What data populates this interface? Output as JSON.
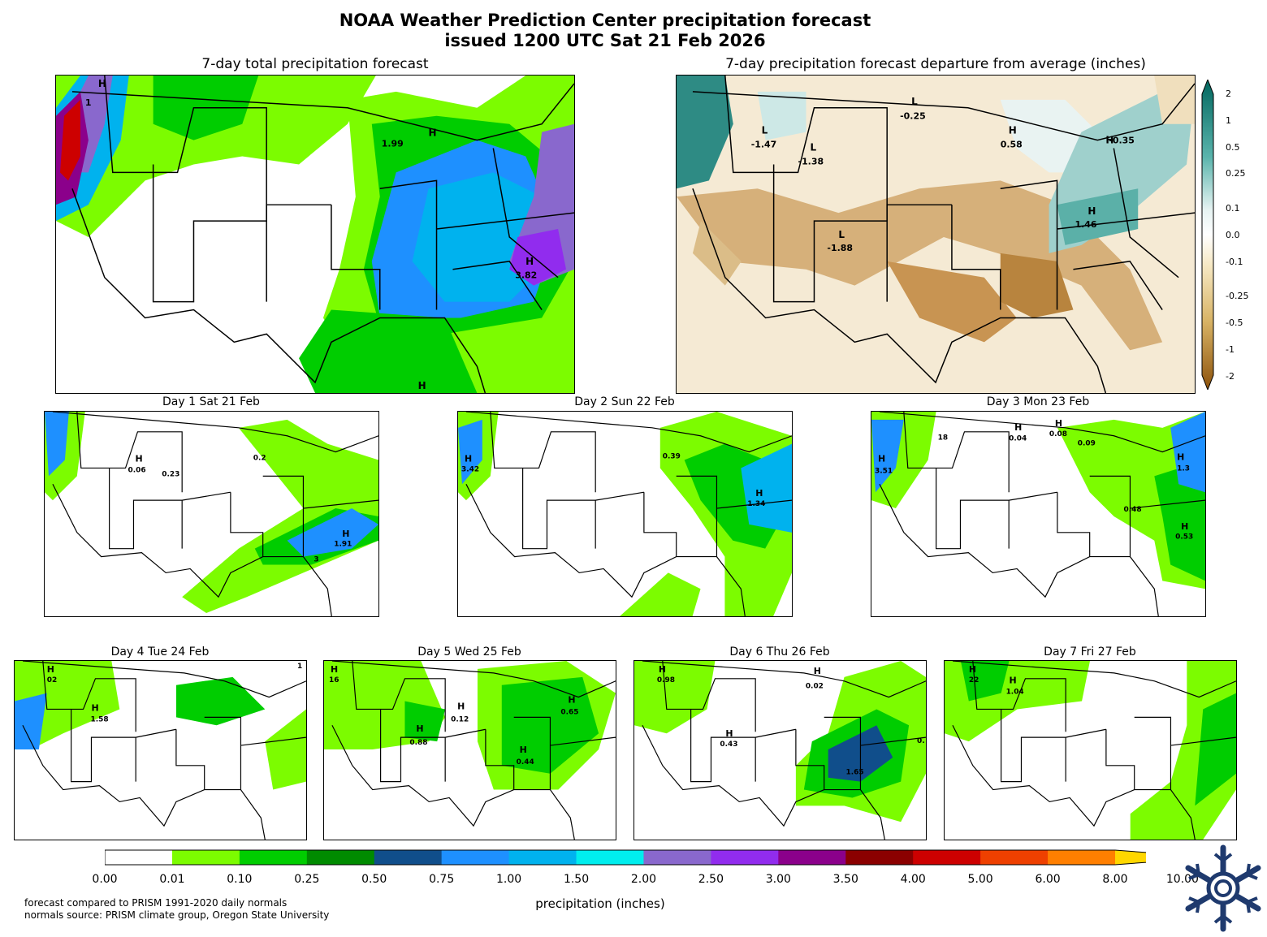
{
  "title_line1": "NOAA Weather Prediction Center precipitation forecast",
  "title_line2": "issued 1200 UTC Sat 21 Feb 2026",
  "total_panel_title": "7-day total precipitation forecast",
  "departure_panel_title": "7-day precipitation forecast departure from average (inches)",
  "day_panels": [
    {
      "title": "Day 1  Sat 21 Feb"
    },
    {
      "title": "Day 2  Sun 22 Feb"
    },
    {
      "title": "Day 3  Mon 23 Feb"
    },
    {
      "title": "Day 4  Tue 24 Feb"
    },
    {
      "title": "Day 5  Wed 25 Feb"
    },
    {
      "title": "Day 6  Thu 26 Feb"
    },
    {
      "title": "Day 7  Fri 27 Feb"
    }
  ],
  "total_markers": [
    {
      "kind": "H",
      "value": "1"
    },
    {
      "kind": "H",
      "value": "1.99"
    },
    {
      "kind": "H",
      "value": "3.82"
    },
    {
      "kind": "H",
      "value": ""
    }
  ],
  "departure_markers": [
    {
      "kind": "L",
      "value": "-1.47"
    },
    {
      "kind": "L",
      "value": "-1.38"
    },
    {
      "kind": "L",
      "value": "-0.25"
    },
    {
      "kind": "H",
      "value": "0.58"
    },
    {
      "kind": "H",
      "value": "-0.35"
    },
    {
      "kind": "H",
      "value": "1.46"
    },
    {
      "kind": "L",
      "value": "-1.88"
    }
  ],
  "day_markers": {
    "day1": [
      "0.06",
      "0.23",
      "0.2",
      "1.91",
      "3"
    ],
    "day2": [
      "3.42",
      "0.39",
      "1.34"
    ],
    "day3": [
      "3.51",
      "18",
      "0.04",
      "0.08",
      "0.09",
      "0.48",
      "1.3",
      "0.53"
    ],
    "day4": [
      "02",
      "1.58",
      "1"
    ],
    "day5": [
      "16",
      "0.88",
      "0.12",
      "0.65",
      "0.44"
    ],
    "day6": [
      "0.98",
      "0.02",
      "0.43",
      "1.65",
      "0."
    ],
    "day7": [
      "22",
      "1.04"
    ]
  },
  "departure_colorbar_ticks": [
    "2",
    "1",
    "0.5",
    "0.25",
    "0.1",
    "0.0",
    "-0.1",
    "-0.25",
    "-0.5",
    "-1",
    "-2"
  ],
  "precip_colorbar": {
    "ticks": [
      "0.00",
      "0.01",
      "0.10",
      "0.25",
      "0.50",
      "0.75",
      "1.00",
      "1.50",
      "2.00",
      "2.50",
      "3.00",
      "3.50",
      "4.00",
      "5.00",
      "6.00",
      "8.00",
      "10.00"
    ],
    "colors": [
      "#ffffff",
      "#7cfc00",
      "#00cd00",
      "#008b00",
      "#104e8b",
      "#1e90ff",
      "#00b2ee",
      "#00eeee",
      "#8968cd",
      "#912cee",
      "#8b008b",
      "#8b0000",
      "#cd0000",
      "#ee4000",
      "#ff7f00",
      "#ffd700"
    ],
    "label": "precipitation (inches)"
  },
  "footer_line1": "forecast compared to PRISM 1991-2020 daily normals",
  "footer_line2": "normals source: PRISM climate group, Oregon State University"
}
